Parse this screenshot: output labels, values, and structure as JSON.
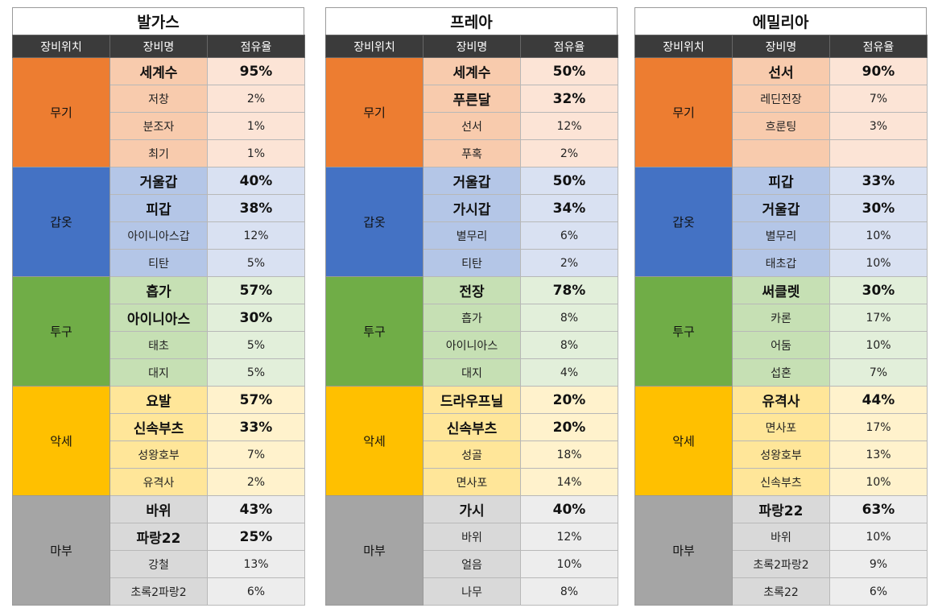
{
  "headers": [
    "장비위치",
    "장비명",
    "점유율"
  ],
  "slot_colors": {
    "무기": {
      "slot": "#ed7d31",
      "name": "#f8cbad",
      "pct": "#fce4d6"
    },
    "갑옷": {
      "slot": "#4472c4",
      "name": "#b4c6e7",
      "pct": "#d9e1f2"
    },
    "투구": {
      "slot": "#70ad47",
      "name": "#c6e0b4",
      "pct": "#e2efda"
    },
    "악세": {
      "slot": "#ffc000",
      "name": "#ffe699",
      "pct": "#fff2cc"
    },
    "마부": {
      "slot": "#a5a5a5",
      "name": "#d9d9d9",
      "pct": "#ededed"
    }
  },
  "panels": [
    {
      "title": "발가스",
      "groups": [
        {
          "slot": "무기",
          "rows": [
            {
              "name": "세계수",
              "pct": "95%",
              "bold": true
            },
            {
              "name": "저창",
              "pct": "2%",
              "bold": false
            },
            {
              "name": "분조자",
              "pct": "1%",
              "bold": false
            },
            {
              "name": "최기",
              "pct": "1%",
              "bold": false
            }
          ]
        },
        {
          "slot": "갑옷",
          "rows": [
            {
              "name": "거울갑",
              "pct": "40%",
              "bold": true
            },
            {
              "name": "피갑",
              "pct": "38%",
              "bold": true
            },
            {
              "name": "아이니아스갑",
              "pct": "12%",
              "bold": false
            },
            {
              "name": "티탄",
              "pct": "5%",
              "bold": false
            }
          ]
        },
        {
          "slot": "투구",
          "rows": [
            {
              "name": "흡가",
              "pct": "57%",
              "bold": true
            },
            {
              "name": "아이니아스",
              "pct": "30%",
              "bold": true
            },
            {
              "name": "태초",
              "pct": "5%",
              "bold": false
            },
            {
              "name": "대지",
              "pct": "5%",
              "bold": false
            }
          ]
        },
        {
          "slot": "악세",
          "rows": [
            {
              "name": "요발",
              "pct": "57%",
              "bold": true
            },
            {
              "name": "신속부츠",
              "pct": "33%",
              "bold": true
            },
            {
              "name": "성왕호부",
              "pct": "7%",
              "bold": false
            },
            {
              "name": "유격사",
              "pct": "2%",
              "bold": false
            }
          ]
        },
        {
          "slot": "마부",
          "rows": [
            {
              "name": "바위",
              "pct": "43%",
              "bold": true
            },
            {
              "name": "파랑22",
              "pct": "25%",
              "bold": true
            },
            {
              "name": "강철",
              "pct": "13%",
              "bold": false
            },
            {
              "name": "초록2파랑2",
              "pct": "6%",
              "bold": false
            }
          ]
        }
      ]
    },
    {
      "title": "프레아",
      "groups": [
        {
          "slot": "무기",
          "rows": [
            {
              "name": "세계수",
              "pct": "50%",
              "bold": true
            },
            {
              "name": "푸른달",
              "pct": "32%",
              "bold": true
            },
            {
              "name": "선서",
              "pct": "12%",
              "bold": false
            },
            {
              "name": "푸혹",
              "pct": "2%",
              "bold": false
            }
          ]
        },
        {
          "slot": "갑옷",
          "rows": [
            {
              "name": "거울갑",
              "pct": "50%",
              "bold": true
            },
            {
              "name": "가시갑",
              "pct": "34%",
              "bold": true
            },
            {
              "name": "별무리",
              "pct": "6%",
              "bold": false
            },
            {
              "name": "티탄",
              "pct": "2%",
              "bold": false
            }
          ]
        },
        {
          "slot": "투구",
          "rows": [
            {
              "name": "전장",
              "pct": "78%",
              "bold": true
            },
            {
              "name": "흡가",
              "pct": "8%",
              "bold": false
            },
            {
              "name": "아이니아스",
              "pct": "8%",
              "bold": false
            },
            {
              "name": "대지",
              "pct": "4%",
              "bold": false
            }
          ]
        },
        {
          "slot": "악세",
          "rows": [
            {
              "name": "드라우프닐",
              "pct": "20%",
              "bold": true
            },
            {
              "name": "신속부츠",
              "pct": "20%",
              "bold": true
            },
            {
              "name": "성골",
              "pct": "18%",
              "bold": false
            },
            {
              "name": "면사포",
              "pct": "14%",
              "bold": false
            }
          ]
        },
        {
          "slot": "마부",
          "rows": [
            {
              "name": "가시",
              "pct": "40%",
              "bold": true
            },
            {
              "name": "바위",
              "pct": "12%",
              "bold": false
            },
            {
              "name": "얼음",
              "pct": "10%",
              "bold": false
            },
            {
              "name": "나무",
              "pct": "8%",
              "bold": false
            }
          ]
        }
      ]
    },
    {
      "title": "에밀리아",
      "groups": [
        {
          "slot": "무기",
          "rows": [
            {
              "name": "선서",
              "pct": "90%",
              "bold": true
            },
            {
              "name": "레딘전장",
              "pct": "7%",
              "bold": false
            },
            {
              "name": "흐룬팅",
              "pct": "3%",
              "bold": false
            },
            {
              "name": "",
              "pct": "",
              "bold": false
            }
          ]
        },
        {
          "slot": "갑옷",
          "rows": [
            {
              "name": "피갑",
              "pct": "33%",
              "bold": true
            },
            {
              "name": "거울갑",
              "pct": "30%",
              "bold": true
            },
            {
              "name": "별무리",
              "pct": "10%",
              "bold": false
            },
            {
              "name": "태초갑",
              "pct": "10%",
              "bold": false
            }
          ]
        },
        {
          "slot": "투구",
          "rows": [
            {
              "name": "써클렛",
              "pct": "30%",
              "bold": true
            },
            {
              "name": "카론",
              "pct": "17%",
              "bold": false
            },
            {
              "name": "어둠",
              "pct": "10%",
              "bold": false
            },
            {
              "name": "섭혼",
              "pct": "7%",
              "bold": false
            }
          ]
        },
        {
          "slot": "악세",
          "rows": [
            {
              "name": "유격사",
              "pct": "44%",
              "bold": true
            },
            {
              "name": "면사포",
              "pct": "17%",
              "bold": false
            },
            {
              "name": "성왕호부",
              "pct": "13%",
              "bold": false
            },
            {
              "name": "신속부츠",
              "pct": "10%",
              "bold": false
            }
          ]
        },
        {
          "slot": "마부",
          "rows": [
            {
              "name": "파랑22",
              "pct": "63%",
              "bold": true
            },
            {
              "name": "바위",
              "pct": "10%",
              "bold": false
            },
            {
              "name": "초록2파랑2",
              "pct": "9%",
              "bold": false
            },
            {
              "name": "초록22",
              "pct": "6%",
              "bold": false
            }
          ]
        }
      ]
    }
  ]
}
